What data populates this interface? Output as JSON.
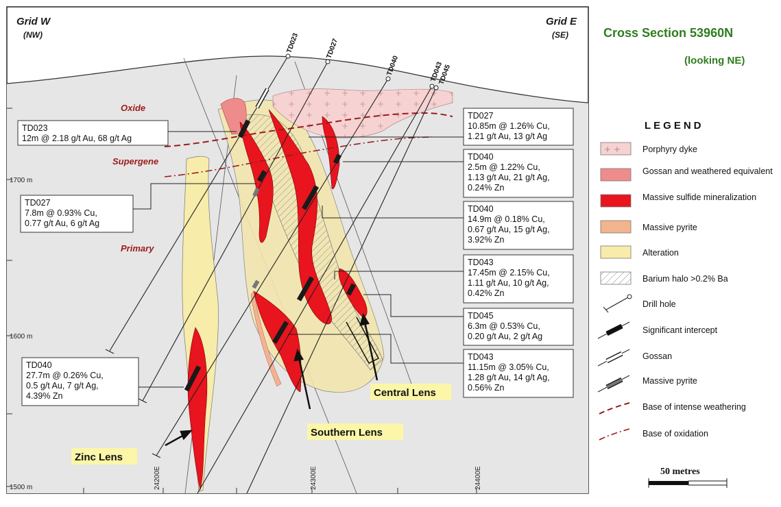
{
  "header": {
    "grid_w": "Grid W",
    "grid_w_sub": "(NW)",
    "grid_e": "Grid E",
    "grid_e_sub": "(SE)",
    "title": "Cross Section 53960N",
    "subtitle": "(looking NE)"
  },
  "zones": {
    "oxide": "Oxide",
    "supergene": "Supergene",
    "primary": "Primary"
  },
  "elevations": [
    "1700 m",
    "1600 m",
    "1500 m"
  ],
  "eastings": [
    "24200E",
    "24300E",
    "24400E"
  ],
  "drill_holes": [
    "TD023",
    "TD027",
    "TD040",
    "TD043",
    "TD045"
  ],
  "intercepts": {
    "td023": [
      "TD023",
      "12m @ 2.18 g/t Au, 68 g/t Ag"
    ],
    "td027_left": [
      "TD027",
      "7.8m @ 0.93% Cu,",
      "0.77 g/t Au, 6 g/t Ag"
    ],
    "td040_left": [
      "TD040",
      "27.7m @ 0.26% Cu,",
      "0.5 g/t Au, 7 g/t Ag,",
      "4.39% Zn"
    ],
    "td027_right": [
      "TD027",
      "10.85m @ 1.26% Cu,",
      "1.21 g/t Au, 13 g/t Ag"
    ],
    "td040_a": [
      "TD040",
      "2.5m @ 1.22% Cu,",
      "1.13 g/t Au, 21 g/t Ag,",
      "0.24% Zn"
    ],
    "td040_b": [
      "TD040",
      "14.9m @ 0.18% Cu,",
      "0.67 g/t Au, 15 g/t Ag,",
      "3.92% Zn"
    ],
    "td043_a": [
      "TD043",
      "17.45m @ 2.15% Cu,",
      "1.11 g/t Au, 10 g/t Ag,",
      "0.42% Zn"
    ],
    "td045": [
      "TD045",
      "6.3m @ 0.53% Cu,",
      "0.20 g/t Au, 2 g/t Ag"
    ],
    "td043_b": [
      "TD043",
      "11.15m @ 3.05% Cu,",
      "1.28 g/t Au, 14 g/t Ag,",
      "0.56% Zn"
    ]
  },
  "lenses": {
    "zinc": "Zinc Lens",
    "southern": "Southern Lens",
    "central": "Central Lens"
  },
  "legend": {
    "heading": "LEGEND",
    "items": [
      "Porphyry dyke",
      "Gossan and weathered equivalent",
      "Massive sulfide mineralization",
      "Massive pyrite",
      "Alteration",
      "Barium halo >0.2% Ba",
      "Drill hole",
      "Significant intercept",
      "Gossan",
      "Massive pyrite",
      "Base of intense weathering",
      "Base of oxidation"
    ]
  },
  "scale_bar": "50 metres",
  "colors": {
    "porphyry": "#f6d2d2",
    "gossan": "#ee8c8c",
    "sulfide": "#e8141e",
    "pyrite": "#f2b48c",
    "alteration": "#f7ecaa",
    "section_bg": "#e6e6e6",
    "title_green": "#2e7d1e",
    "zone_red": "#9b1b1b"
  }
}
